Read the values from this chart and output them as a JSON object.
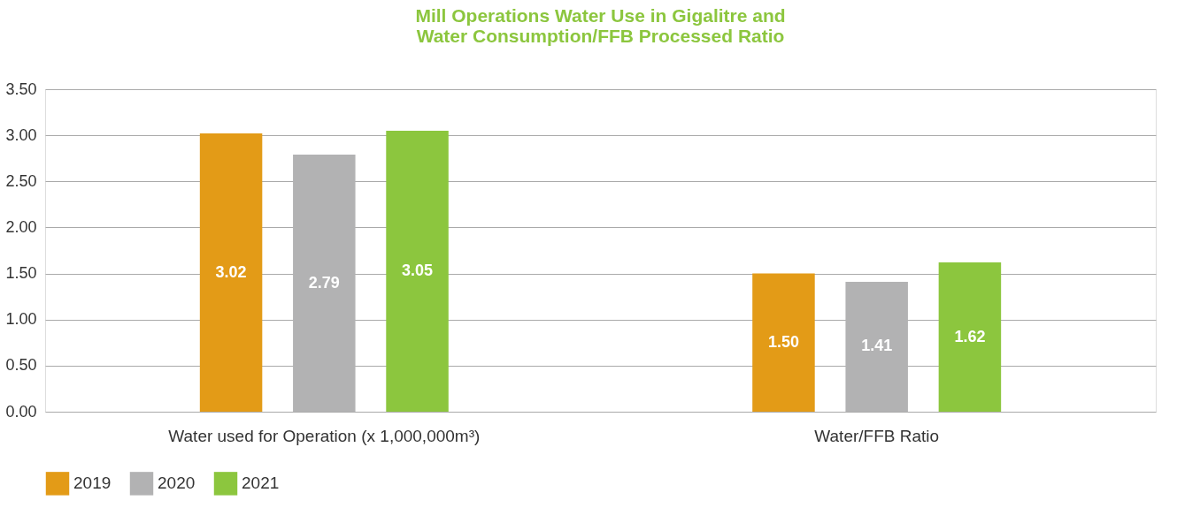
{
  "chart_data": {
    "type": "bar",
    "title": "Mill Operations Water Use in Gigalitre and\nWater Consumption/FFB Processed Ratio",
    "categories": [
      "Water used for Operation (x 1,000,000m³)",
      "Water/FFB Ratio"
    ],
    "series": [
      {
        "name": "2019",
        "color": "#e39b17",
        "values": [
          3.02,
          1.5
        ],
        "value_labels": [
          "3.02",
          "1.50"
        ]
      },
      {
        "name": "2020",
        "color": "#b2b2b3",
        "values": [
          2.79,
          1.41
        ],
        "value_labels": [
          "2.79",
          "1.41"
        ]
      },
      {
        "name": "2021",
        "color": "#8cc63e",
        "values": [
          3.05,
          1.62
        ],
        "value_labels": [
          "3.05",
          "1.62"
        ]
      }
    ],
    "ylim": [
      0,
      3.5
    ],
    "yticks": [
      {
        "value": 0,
        "label": "0.00"
      },
      {
        "value": 0.5,
        "label": "0.50"
      },
      {
        "value": 1,
        "label": "1.00"
      },
      {
        "value": 1.5,
        "label": "1.50"
      },
      {
        "value": 2,
        "label": "2.00"
      },
      {
        "value": 2.5,
        "label": "2.50"
      },
      {
        "value": 3,
        "label": "3.00"
      },
      {
        "value": 3.5,
        "label": "3.50"
      }
    ],
    "grid": "y",
    "legend": "bottom"
  }
}
